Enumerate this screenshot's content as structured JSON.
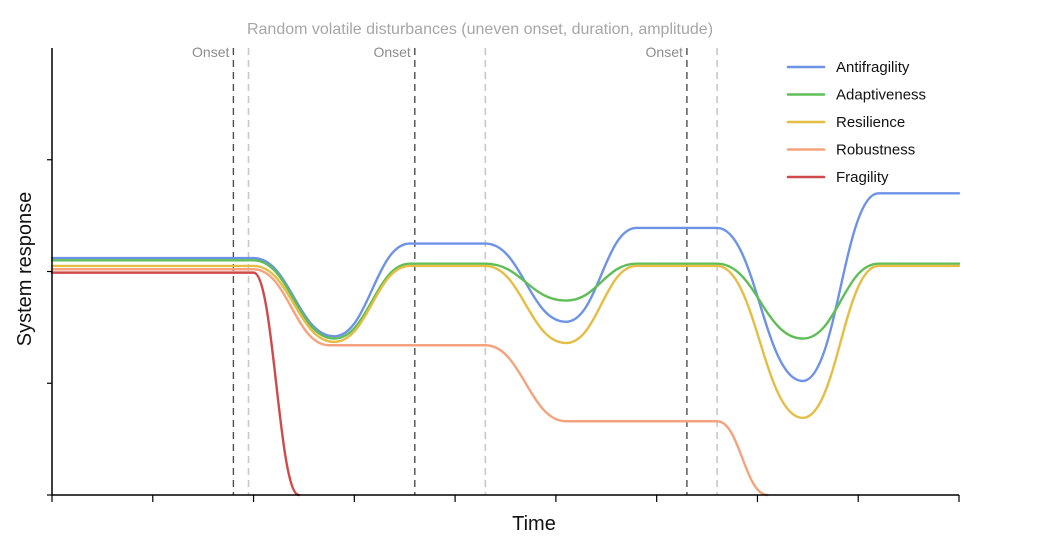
{
  "chart_data": {
    "type": "line",
    "title": "",
    "subtitle": "Random volatile disturbances (uneven onset, duration, amplitude)",
    "xlabel": "Time",
    "ylabel": "System response",
    "grid": false,
    "legend_placement": "top-right",
    "x_ticks": [
      0,
      1,
      2,
      3,
      4,
      5,
      6,
      7,
      8,
      9
    ],
    "y_ticks": [
      0,
      1,
      2,
      3
    ],
    "xlim": [
      0,
      9
    ],
    "ylim": [
      0,
      4
    ],
    "onset_label": "Onset",
    "disturbances": [
      {
        "onset": 1.8,
        "end": 1.95,
        "onset_labeled": true
      },
      {
        "onset": 3.6,
        "end": 4.3,
        "onset_labeled": true
      },
      {
        "onset": 6.3,
        "end": 6.6,
        "onset_labeled": true
      }
    ],
    "series": [
      {
        "name": "Antifragility",
        "color": "#6e92e6",
        "points": [
          [
            0,
            2.12
          ],
          [
            2.0,
            2.12
          ],
          [
            2.8,
            1.42
          ],
          [
            3.55,
            2.25
          ],
          [
            4.3,
            2.25
          ],
          [
            5.1,
            1.55
          ],
          [
            5.8,
            2.39
          ],
          [
            6.6,
            2.39
          ],
          [
            7.45,
            1.02
          ],
          [
            8.2,
            2.7
          ],
          [
            9.0,
            2.7
          ]
        ]
      },
      {
        "name": "Adaptiveness",
        "color": "#5fbe57",
        "points": [
          [
            0,
            2.1
          ],
          [
            2.0,
            2.1
          ],
          [
            2.8,
            1.4
          ],
          [
            3.55,
            2.07
          ],
          [
            4.3,
            2.07
          ],
          [
            5.1,
            1.74
          ],
          [
            5.8,
            2.07
          ],
          [
            6.6,
            2.07
          ],
          [
            7.45,
            1.4
          ],
          [
            8.2,
            2.07
          ],
          [
            9.0,
            2.07
          ]
        ]
      },
      {
        "name": "Resilience",
        "color": "#e6bd44",
        "points": [
          [
            0,
            2.05
          ],
          [
            2.0,
            2.05
          ],
          [
            2.8,
            1.37
          ],
          [
            3.55,
            2.05
          ],
          [
            4.3,
            2.05
          ],
          [
            5.1,
            1.36
          ],
          [
            5.8,
            2.05
          ],
          [
            6.6,
            2.05
          ],
          [
            7.45,
            0.69
          ],
          [
            8.2,
            2.05
          ],
          [
            9.0,
            2.05
          ]
        ]
      },
      {
        "name": "Robustness",
        "color": "#f5a37d",
        "points": [
          [
            0,
            2.02
          ],
          [
            2.0,
            2.02
          ],
          [
            2.75,
            1.34
          ],
          [
            4.3,
            1.34
          ],
          [
            5.1,
            0.66
          ],
          [
            6.6,
            0.66
          ],
          [
            7.1,
            0.0
          ]
        ]
      },
      {
        "name": "Fragility",
        "color": "#cf4a4a",
        "points": [
          [
            0,
            1.99
          ],
          [
            2.0,
            1.99
          ],
          [
            2.45,
            0.0
          ]
        ]
      }
    ]
  }
}
